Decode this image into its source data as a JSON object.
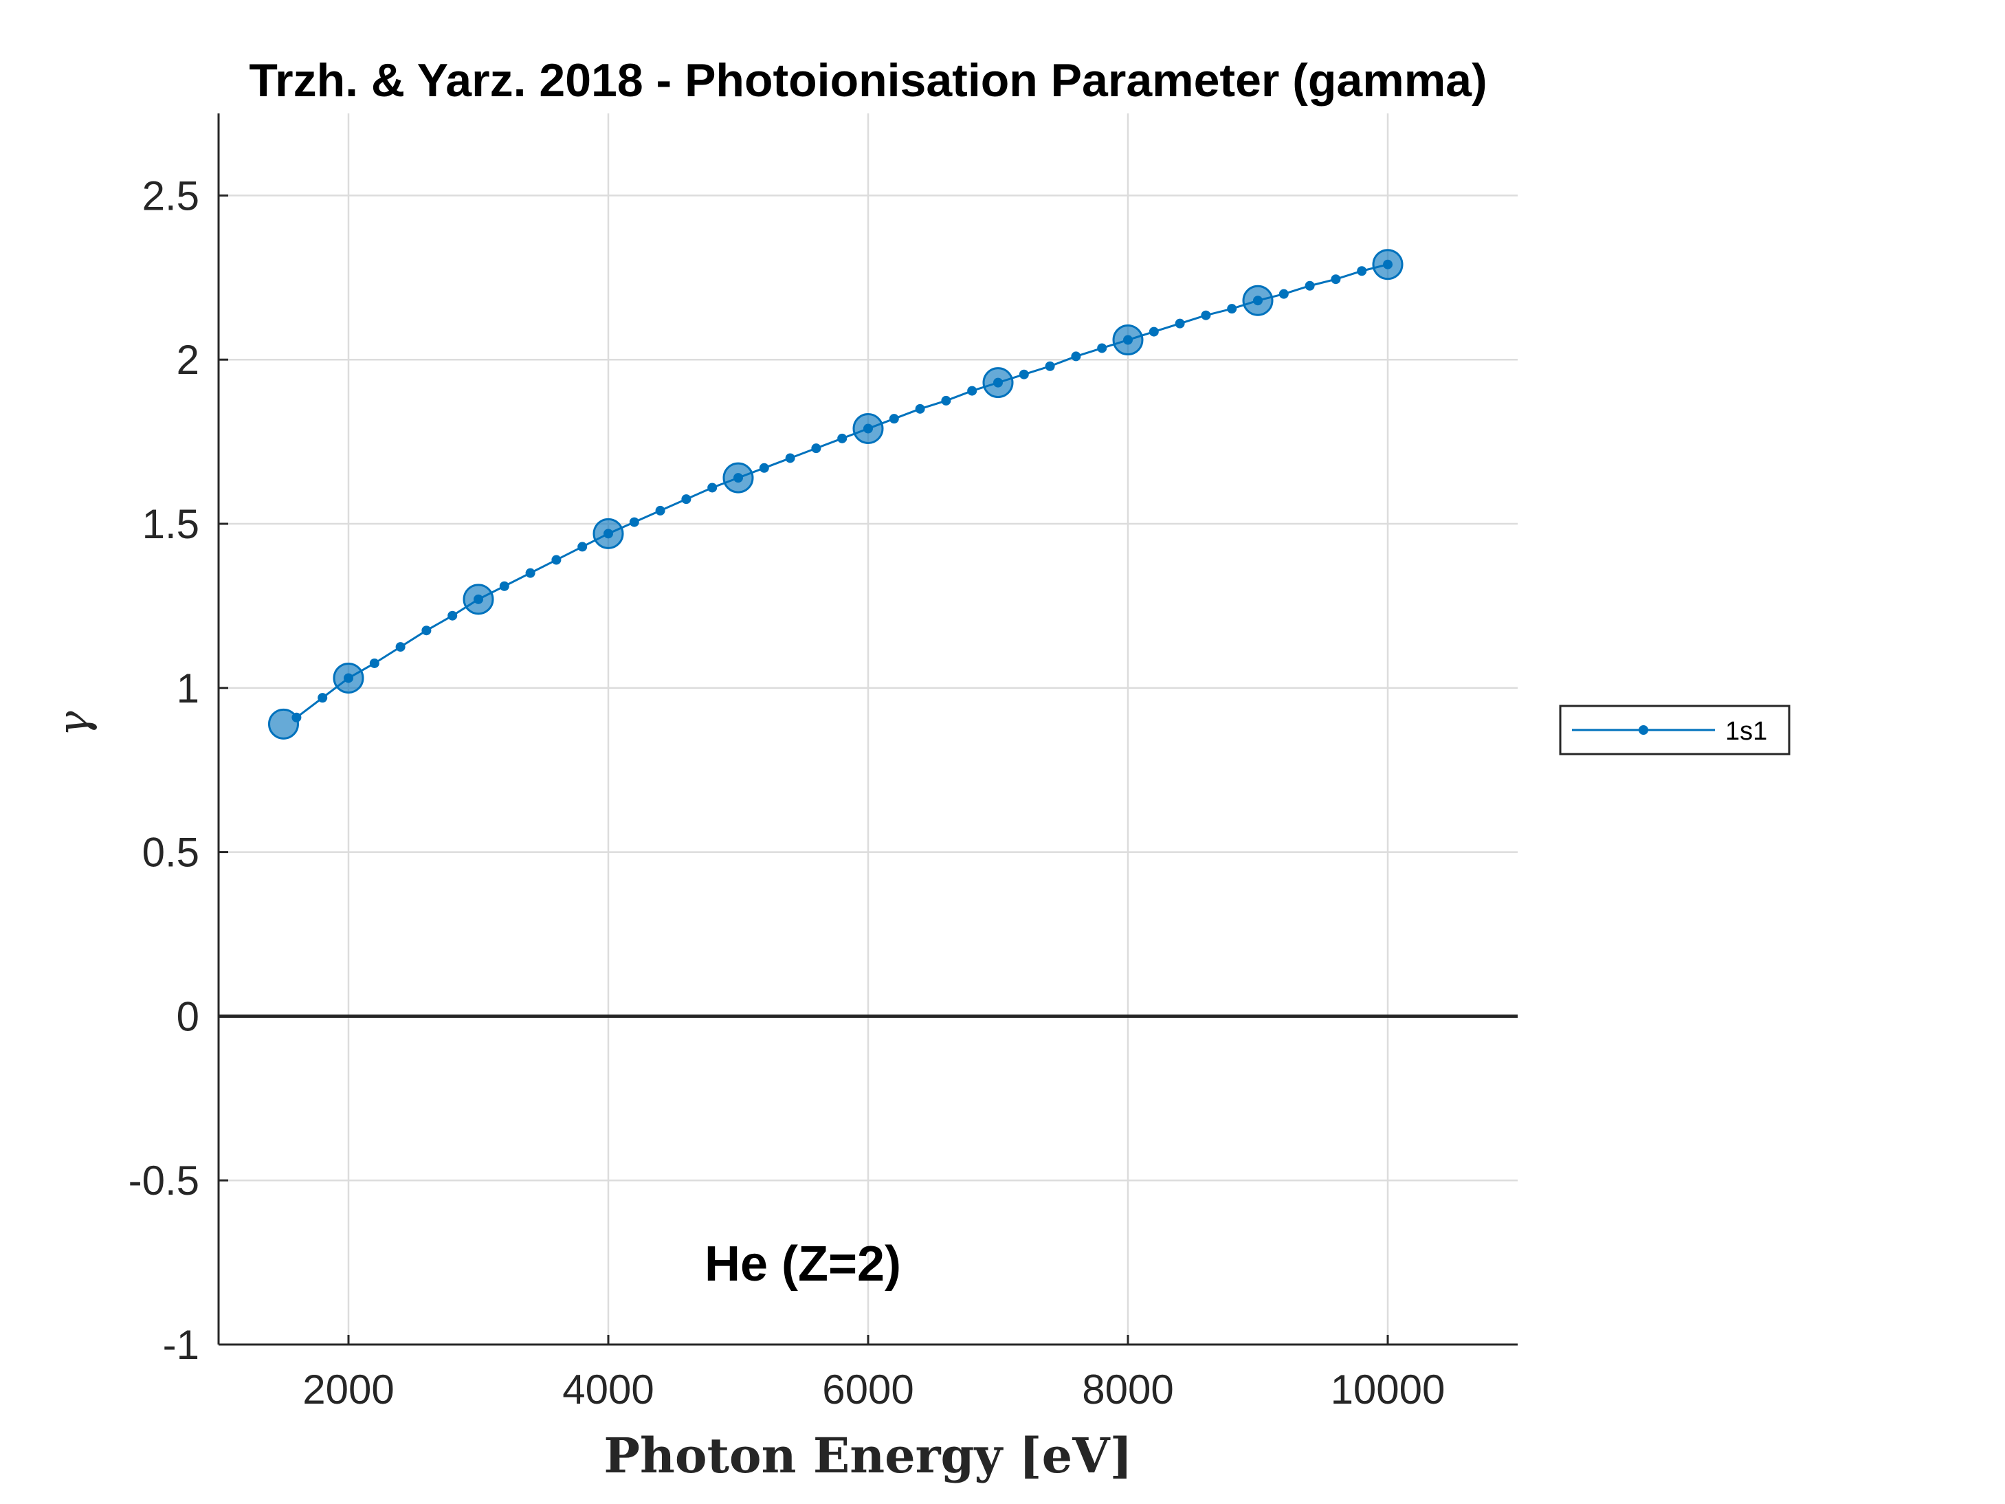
{
  "chart_data": {
    "type": "line",
    "title": "Trzh. & Yarz. 2018 - Photoionisation Parameter (gamma)",
    "xlabel": "Photon Energy [eV]",
    "ylabel": "γ",
    "xlim": [
      1000,
      11000
    ],
    "ylim": [
      -1,
      2.75
    ],
    "xticks": [
      2000,
      4000,
      6000,
      8000,
      10000
    ],
    "xtick_labels": [
      "2000",
      "4000",
      "6000",
      "8000",
      "10000"
    ],
    "yticks": [
      -1,
      -0.5,
      0,
      0.5,
      1,
      1.5,
      2,
      2.5
    ],
    "ytick_labels": [
      "-1",
      "-0.5",
      "0",
      "0.5",
      "1",
      "1.5",
      "2",
      "2.5"
    ],
    "grid": true,
    "zero_line": true,
    "annotation": "He (Z=2)",
    "legend": {
      "placement": "outside-right",
      "entries": [
        "1s1"
      ]
    },
    "series": [
      {
        "name": "1s1",
        "color": "#0072BD",
        "style": "line-dot",
        "x": [
          1600,
          1800,
          2000,
          2200,
          2400,
          2600,
          2800,
          3000,
          3200,
          3400,
          3600,
          3800,
          4000,
          4200,
          4400,
          4600,
          4800,
          5000,
          5200,
          5400,
          5600,
          5800,
          6000,
          6200,
          6400,
          6600,
          6800,
          7000,
          7200,
          7400,
          7600,
          7800,
          8000,
          8200,
          8400,
          8600,
          8800,
          9000,
          9200,
          9400,
          9600,
          9800,
          10000
        ],
        "y": [
          0.91,
          0.97,
          1.03,
          1.075,
          1.125,
          1.175,
          1.22,
          1.27,
          1.31,
          1.35,
          1.39,
          1.43,
          1.47,
          1.505,
          1.54,
          1.575,
          1.61,
          1.64,
          1.67,
          1.7,
          1.73,
          1.76,
          1.79,
          1.82,
          1.85,
          1.875,
          1.905,
          1.93,
          1.955,
          1.98,
          2.01,
          2.035,
          2.06,
          2.085,
          2.11,
          2.135,
          2.155,
          2.18,
          2.2,
          2.225,
          2.245,
          2.27,
          2.29
        ]
      },
      {
        "name": "",
        "color": "#0072BD",
        "style": "large-markers",
        "x": [
          1500,
          2000,
          3000,
          4000,
          5000,
          6000,
          7000,
          8000,
          9000,
          10000
        ],
        "y": [
          0.89,
          1.03,
          1.27,
          1.47,
          1.64,
          1.79,
          1.93,
          2.06,
          2.18,
          2.29
        ]
      }
    ]
  }
}
